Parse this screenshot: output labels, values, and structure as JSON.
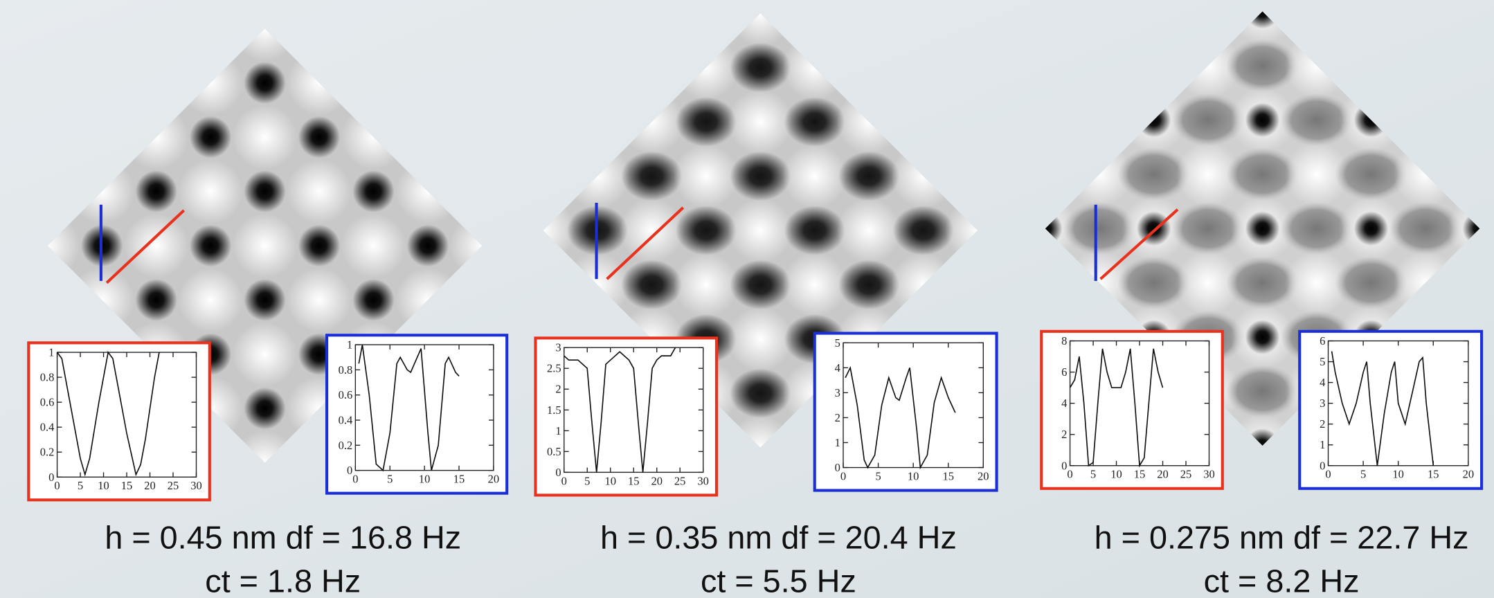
{
  "panels": [
    {
      "caption": [
        "h = 0.45 nm df = 16.8 Hz",
        "ct = 1.8 Hz"
      ],
      "red_profile": {
        "frame_color": "#e8321e",
        "xlim": [
          0,
          30
        ],
        "ylim": [
          0,
          1
        ],
        "xticks": [
          0,
          5,
          10,
          15,
          20,
          25,
          30
        ],
        "yticks": [
          0,
          0.2,
          0.4,
          0.6,
          0.8,
          1
        ],
        "x": [
          0,
          1,
          3,
          5,
          6,
          7,
          9,
          11,
          12,
          13,
          15,
          17,
          18,
          19,
          21,
          22
        ],
        "values": [
          1,
          0.95,
          0.55,
          0.15,
          0.02,
          0.15,
          0.6,
          1,
          0.95,
          0.75,
          0.35,
          0.02,
          0.1,
          0.3,
          0.8,
          1
        ]
      },
      "blue_profile": {
        "frame_color": "#1a2fd6",
        "xlim": [
          0,
          20
        ],
        "ylim": [
          0,
          1
        ],
        "xticks": [
          0,
          5,
          10,
          15,
          20
        ],
        "yticks": [
          0,
          0.2,
          0.4,
          0.6,
          0.8,
          1
        ],
        "x": [
          0.5,
          1,
          2,
          3,
          4,
          5,
          6,
          6.5,
          7.5,
          8,
          9.5,
          10.5,
          11,
          12,
          13,
          13.5,
          14.5,
          15
        ],
        "values": [
          0.85,
          1,
          0.6,
          0.05,
          0,
          0.3,
          0.85,
          0.9,
          0.8,
          0.78,
          0.97,
          0.3,
          0,
          0.2,
          0.85,
          0.9,
          0.78,
          0.75
        ]
      }
    },
    {
      "caption": [
        "h = 0.35 nm df = 20.4 Hz",
        "ct = 5.5 Hz"
      ],
      "red_profile": {
        "frame_color": "#e8321e",
        "xlim": [
          0,
          30
        ],
        "ylim": [
          0,
          3
        ],
        "xticks": [
          0,
          5,
          10,
          15,
          20,
          25,
          30
        ],
        "yticks": [
          0,
          0.5,
          1,
          1.5,
          2,
          2.5,
          3
        ],
        "x": [
          0,
          1,
          3,
          5,
          6,
          7,
          8,
          9,
          10,
          12,
          14,
          15,
          16,
          17,
          18,
          19,
          20,
          21,
          23,
          24
        ],
        "values": [
          2.8,
          2.7,
          2.7,
          2.5,
          1.2,
          0,
          1.2,
          2.6,
          2.7,
          2.9,
          2.7,
          2.5,
          1.2,
          0,
          1.2,
          2.5,
          2.7,
          2.8,
          2.8,
          3
        ]
      },
      "blue_profile": {
        "frame_color": "#1a2fd6",
        "xlim": [
          0,
          20
        ],
        "ylim": [
          0,
          5
        ],
        "xticks": [
          0,
          5,
          10,
          15,
          20
        ],
        "yticks": [
          0,
          1,
          2,
          3,
          4,
          5
        ],
        "x": [
          0.3,
          1,
          2,
          3,
          3.5,
          4.5,
          5.5,
          6.5,
          7.5,
          8,
          9,
          9.5,
          10.5,
          11,
          12,
          13,
          14,
          15,
          16
        ],
        "values": [
          3.6,
          4,
          2.5,
          0.3,
          0,
          0.5,
          2.5,
          3.6,
          2.8,
          2.7,
          3.6,
          4,
          1.5,
          0,
          0.5,
          2.6,
          3.6,
          2.8,
          2.2
        ]
      }
    },
    {
      "caption": [
        "h = 0.275 nm df = 22.7 Hz",
        "ct = 8.2 Hz"
      ],
      "red_profile": {
        "frame_color": "#e8321e",
        "xlim": [
          0,
          30
        ],
        "ylim": [
          0,
          8
        ],
        "xticks": [
          0,
          5,
          10,
          15,
          20,
          25,
          30
        ],
        "yticks": [
          0,
          2,
          4,
          6,
          8
        ],
        "x": [
          0,
          1,
          2,
          3,
          4,
          5,
          6,
          7,
          8,
          9,
          10,
          11,
          12,
          13,
          14,
          15,
          16,
          17,
          18,
          19,
          20
        ],
        "values": [
          5,
          5.5,
          7,
          4,
          0,
          0.2,
          4,
          7.5,
          6,
          5,
          5,
          5,
          6,
          7.5,
          4,
          0,
          0.5,
          4,
          7.5,
          6,
          5
        ]
      },
      "blue_profile": {
        "frame_color": "#1a2fd6",
        "xlim": [
          0,
          20
        ],
        "ylim": [
          0,
          6
        ],
        "xticks": [
          0,
          5,
          10,
          15,
          20
        ],
        "yticks": [
          0,
          1,
          2,
          3,
          4,
          5,
          6
        ],
        "x": [
          0.5,
          1,
          2,
          3,
          4,
          5,
          5.5,
          6,
          7,
          8,
          9,
          9.5,
          10,
          11,
          12,
          13,
          13.5,
          14,
          15
        ],
        "values": [
          5.5,
          4.5,
          3,
          2,
          3,
          4.5,
          5,
          3,
          0,
          2.5,
          4.5,
          5,
          3,
          2,
          3.5,
          5,
          5.2,
          3,
          0
        ]
      }
    }
  ]
}
